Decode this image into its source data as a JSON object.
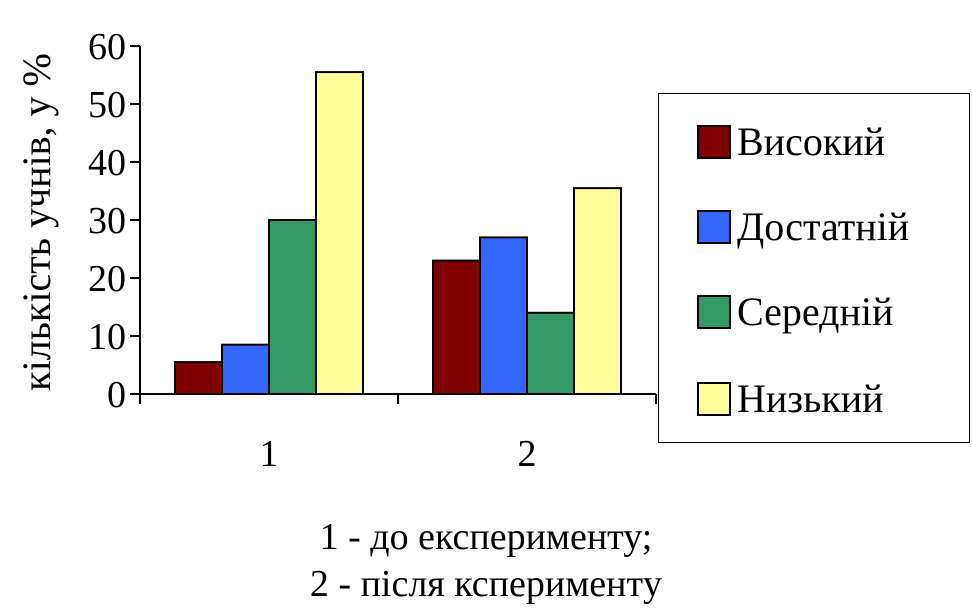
{
  "chart_data": {
    "type": "bar",
    "title": "",
    "xlabel": "",
    "ylabel": "кількість учнів, у %",
    "ylim": [
      0,
      60
    ],
    "yticks": [
      "0",
      "10",
      "20",
      "30",
      "40",
      "50",
      "60"
    ],
    "categories": [
      "1",
      "2"
    ],
    "series": [
      {
        "name": "Високий",
        "color": "#800000",
        "values": [
          5.5,
          23
        ]
      },
      {
        "name": "Достатній",
        "color": "#3366ff",
        "values": [
          8.5,
          27
        ]
      },
      {
        "name": "Середній",
        "color": "#339966",
        "values": [
          30,
          14
        ]
      },
      {
        "name": "Низький",
        "color": "#ffff99",
        "values": [
          55.5,
          35.5
        ]
      }
    ],
    "grid": false,
    "legend_position": "right"
  },
  "caption": {
    "line1": "1 - до експерименту;",
    "line2": "2 - після кспериментy"
  }
}
